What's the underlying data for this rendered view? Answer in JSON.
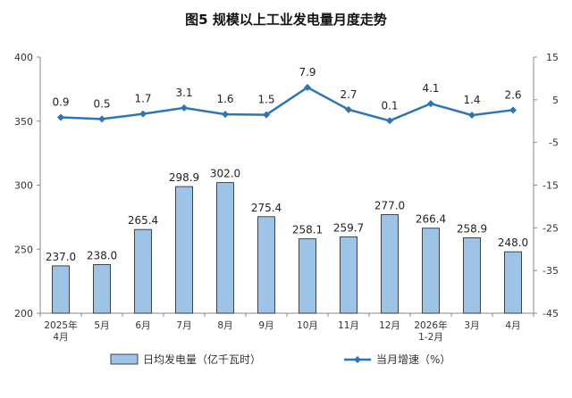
{
  "chart_data": {
    "type": "bar",
    "title": "图5 规模以上工业发电量月度走势",
    "categories": [
      [
        "2025年",
        "4月"
      ],
      [
        "5月"
      ],
      [
        "6月"
      ],
      [
        "7月"
      ],
      [
        "8月"
      ],
      [
        "9月"
      ],
      [
        "10月"
      ],
      [
        "11月"
      ],
      [
        "12月"
      ],
      [
        "2026年",
        "1-2月"
      ],
      [
        "3月"
      ],
      [
        "4月"
      ]
    ],
    "series": [
      {
        "name": "日均发电量（亿千瓦时）",
        "type": "bar",
        "axis": "left",
        "color": "#9DC3E6",
        "values": [
          237.0,
          238.0,
          265.4,
          298.9,
          302.0,
          275.4,
          258.1,
          259.7,
          277.0,
          266.4,
          258.9,
          248.0
        ]
      },
      {
        "name": "当月增速（%）",
        "type": "line",
        "axis": "right",
        "color": "#2E75B6",
        "values": [
          0.9,
          0.5,
          1.7,
          3.1,
          1.6,
          1.5,
          7.9,
          2.7,
          0.1,
          4.1,
          1.4,
          2.6
        ]
      }
    ],
    "left_axis": {
      "min": 200,
      "max": 400,
      "ticks": [
        "200",
        "250",
        "300",
        "350",
        "400"
      ]
    },
    "right_axis": {
      "min": -45,
      "max": 15,
      "ticks": [
        "-45",
        "-35",
        "-25",
        "-15",
        "-5",
        "5",
        "15"
      ]
    },
    "legend_position": "bottom",
    "grid": false
  }
}
